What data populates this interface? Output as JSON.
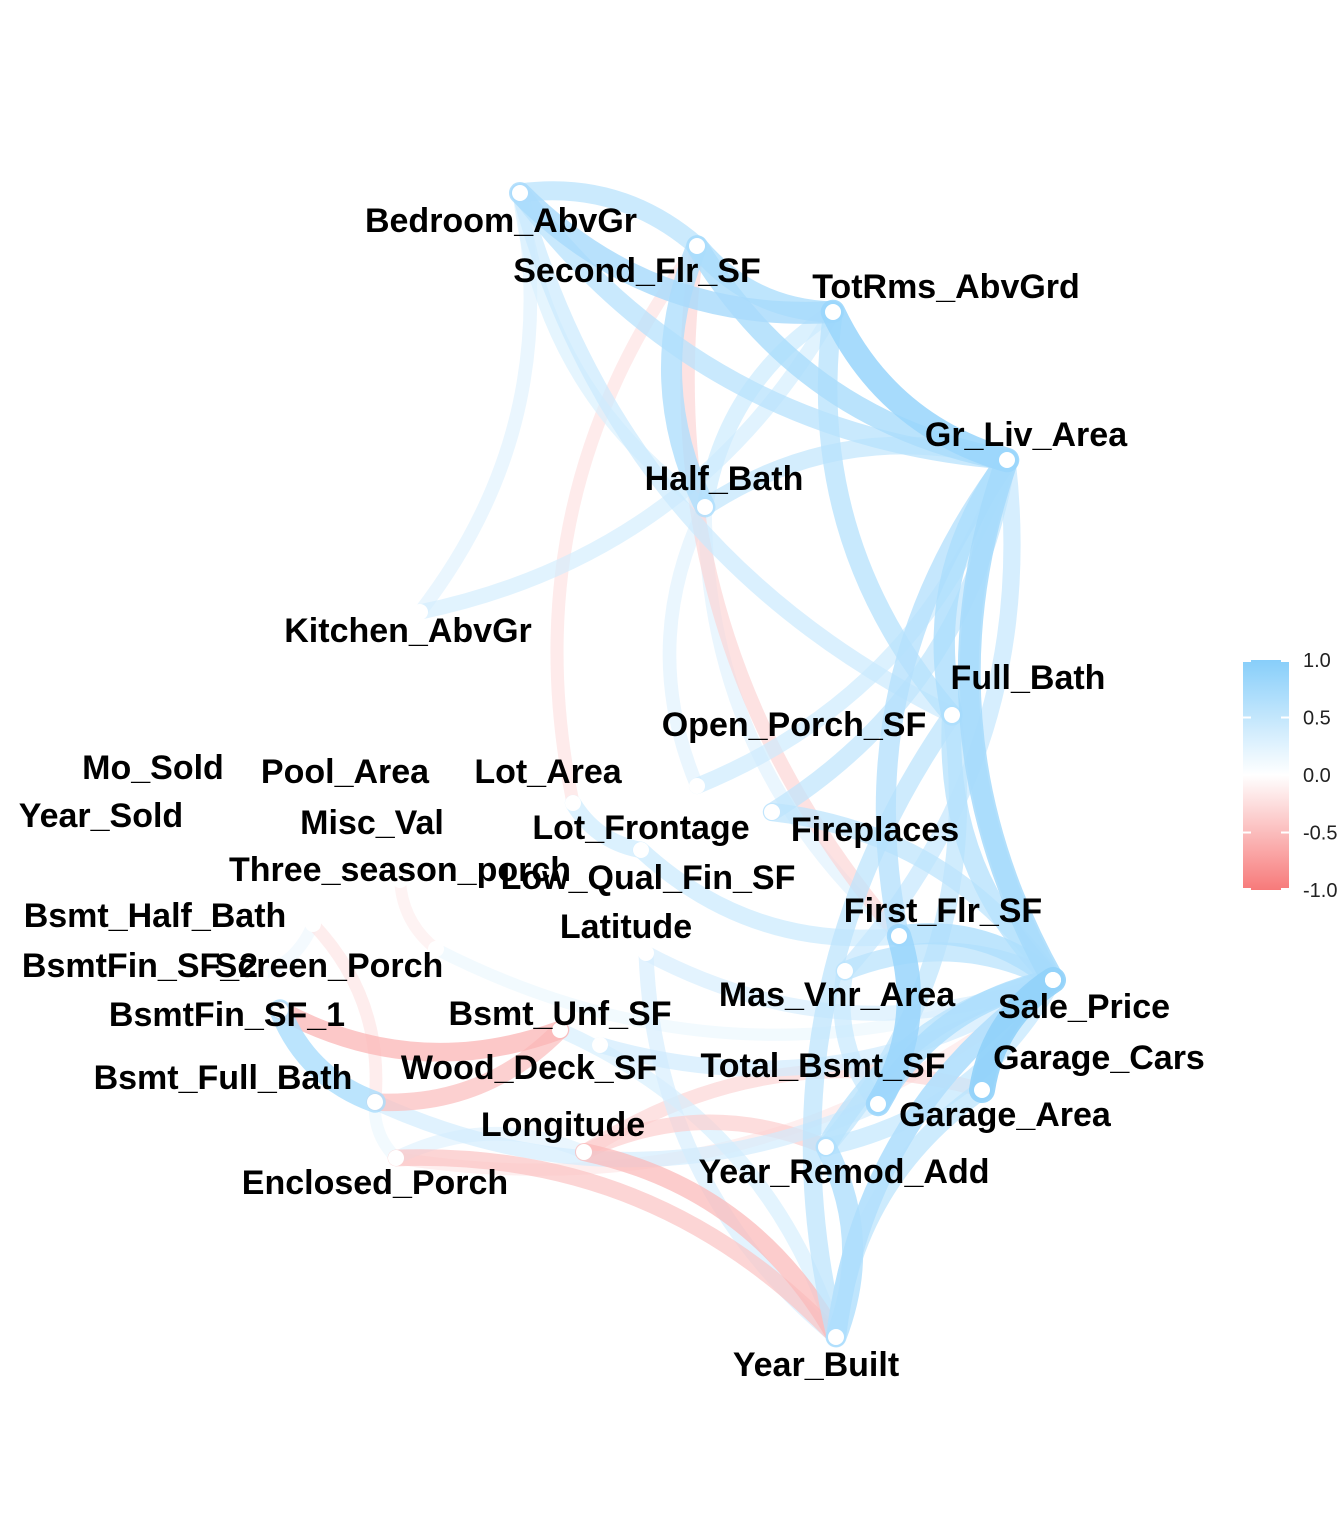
{
  "chart_data": {
    "type": "correlation-network",
    "nodes": [
      {
        "id": "Bedroom_AbvGr",
        "label": "Bedroom_AbvGr"
      },
      {
        "id": "Second_Flr_SF",
        "label": "Second_Flr_SF"
      },
      {
        "id": "TotRms_AbvGrd",
        "label": "TotRms_AbvGrd"
      },
      {
        "id": "Gr_Liv_Area",
        "label": "Gr_Liv_Area"
      },
      {
        "id": "Half_Bath",
        "label": "Half_Bath"
      },
      {
        "id": "Kitchen_AbvGr",
        "label": "Kitchen_AbvGr"
      },
      {
        "id": "Full_Bath",
        "label": "Full_Bath"
      },
      {
        "id": "Open_Porch_SF",
        "label": "Open_Porch_SF"
      },
      {
        "id": "Mo_Sold",
        "label": "Mo_Sold"
      },
      {
        "id": "Pool_Area",
        "label": "Pool_Area"
      },
      {
        "id": "Lot_Area",
        "label": "Lot_Area"
      },
      {
        "id": "Year_Sold",
        "label": "Year_Sold"
      },
      {
        "id": "Misc_Val",
        "label": "Misc_Val"
      },
      {
        "id": "Lot_Frontage",
        "label": "Lot_Frontage"
      },
      {
        "id": "Fireplaces",
        "label": "Fireplaces"
      },
      {
        "id": "Three_season_porch",
        "label": "Three_season_porch"
      },
      {
        "id": "Low_Qual_Fin_SF",
        "label": "Low_Qual_Fin_SF"
      },
      {
        "id": "Bsmt_Half_Bath",
        "label": "Bsmt_Half_Bath"
      },
      {
        "id": "First_Flr_SF",
        "label": "First_Flr_SF"
      },
      {
        "id": "Latitude",
        "label": "Latitude"
      },
      {
        "id": "BsmtFin_SF_2",
        "label": "BsmtFin_SF_2"
      },
      {
        "id": "Screen_Porch",
        "label": "Screen_Porch"
      },
      {
        "id": "Mas_Vnr_Area",
        "label": "Mas_Vnr_Area"
      },
      {
        "id": "Sale_Price",
        "label": "Sale_Price"
      },
      {
        "id": "BsmtFin_SF_1",
        "label": "BsmtFin_SF_1"
      },
      {
        "id": "Bsmt_Unf_SF",
        "label": "Bsmt_Unf_SF"
      },
      {
        "id": "Garage_Cars",
        "label": "Garage_Cars"
      },
      {
        "id": "Wood_Deck_SF",
        "label": "Wood_Deck_SF"
      },
      {
        "id": "Total_Bsmt_SF",
        "label": "Total_Bsmt_SF"
      },
      {
        "id": "Bsmt_Full_Bath",
        "label": "Bsmt_Full_Bath"
      },
      {
        "id": "Garage_Area",
        "label": "Garage_Area"
      },
      {
        "id": "Longitude",
        "label": "Longitude"
      },
      {
        "id": "Year_Remod_Add",
        "label": "Year_Remod_Add"
      },
      {
        "id": "Enclosed_Porch",
        "label": "Enclosed_Porch"
      },
      {
        "id": "Year_Built",
        "label": "Year_Built"
      }
    ],
    "edges": [
      {
        "source": "Second_Flr_SF",
        "target": "Gr_Liv_Area",
        "r": 0.65
      },
      {
        "source": "TotRms_AbvGrd",
        "target": "Gr_Liv_Area",
        "r": 0.81
      },
      {
        "source": "Bedroom_AbvGr",
        "target": "TotRms_AbvGrd",
        "r": 0.67
      },
      {
        "source": "Bedroom_AbvGr",
        "target": "Gr_Liv_Area",
        "r": 0.52
      },
      {
        "source": "Second_Flr_SF",
        "target": "TotRms_AbvGrd",
        "r": 0.62
      },
      {
        "source": "Second_Flr_SF",
        "target": "Half_Bath",
        "r": 0.61
      },
      {
        "source": "Second_Flr_SF",
        "target": "Bedroom_AbvGr",
        "r": 0.5
      },
      {
        "source": "Gr_Liv_Area",
        "target": "Full_Bath",
        "r": 0.63
      },
      {
        "source": "Gr_Liv_Area",
        "target": "Sale_Price",
        "r": 0.71
      },
      {
        "source": "Gr_Liv_Area",
        "target": "Half_Bath",
        "r": 0.43
      },
      {
        "source": "TotRms_AbvGrd",
        "target": "Full_Bath",
        "r": 0.53
      },
      {
        "source": "TotRms_AbvGrd",
        "target": "Half_Bath",
        "r": 0.35
      },
      {
        "source": "Full_Bath",
        "target": "Sale_Price",
        "r": 0.55
      },
      {
        "source": "Full_Bath",
        "target": "Year_Built",
        "r": 0.47
      },
      {
        "source": "Gr_Liv_Area",
        "target": "First_Flr_SF",
        "r": 0.56
      },
      {
        "source": "Gr_Liv_Area",
        "target": "Garage_Cars",
        "r": 0.49
      },
      {
        "source": "Sale_Price",
        "target": "Garage_Cars",
        "r": 0.65
      },
      {
        "source": "Sale_Price",
        "target": "Garage_Area",
        "r": 0.64
      },
      {
        "source": "Sale_Price",
        "target": "Total_Bsmt_SF",
        "r": 0.63
      },
      {
        "source": "Sale_Price",
        "target": "First_Flr_SF",
        "r": 0.62
      },
      {
        "source": "Sale_Price",
        "target": "Year_Built",
        "r": 0.56
      },
      {
        "source": "Sale_Price",
        "target": "Year_Remod_Add",
        "r": 0.53
      },
      {
        "source": "Sale_Price",
        "target": "Mas_Vnr_Area",
        "r": 0.5
      },
      {
        "source": "Sale_Price",
        "target": "Fireplaces",
        "r": 0.47
      },
      {
        "source": "Garage_Cars",
        "target": "Garage_Area",
        "r": 0.89
      },
      {
        "source": "Garage_Cars",
        "target": "Year_Built",
        "r": 0.54
      },
      {
        "source": "Garage_Area",
        "target": "Year_Built",
        "r": 0.48
      },
      {
        "source": "Total_Bsmt_SF",
        "target": "First_Flr_SF",
        "r": 0.8
      },
      {
        "source": "Year_Built",
        "target": "Year_Remod_Add",
        "r": 0.61
      },
      {
        "source": "Year_Built",
        "target": "Enclosed_Porch",
        "r": -0.37
      },
      {
        "source": "Year_Built",
        "target": "Longitude",
        "r": -0.45
      },
      {
        "source": "Year_Built",
        "target": "Bsmt_Unf_SF",
        "r": 0.27
      },
      {
        "source": "Year_Remod_Add",
        "target": "Longitude",
        "r": -0.3
      },
      {
        "source": "Garage_Area",
        "target": "Longitude",
        "r": -0.25
      },
      {
        "source": "Longitude",
        "target": "Enclosed_Porch",
        "r": 0.2
      },
      {
        "source": "BsmtFin_SF_1",
        "target": "Bsmt_Full_Bath",
        "r": 0.64
      },
      {
        "source": "BsmtFin_SF_1",
        "target": "Bsmt_Unf_SF",
        "r": -0.48
      },
      {
        "source": "Bsmt_Full_Bath",
        "target": "Bsmt_Unf_SF",
        "r": -0.42
      },
      {
        "source": "BsmtFin_SF_2",
        "target": "Bsmt_Half_Bath",
        "r": 0.1
      },
      {
        "source": "Three_season_porch",
        "target": "Screen_Porch",
        "r": -0.1
      },
      {
        "source": "Bsmt_Full_Bath",
        "target": "Bsmt_Half_Bath",
        "r": -0.15
      },
      {
        "source": "Bsmt_Full_Bath",
        "target": "Total_Bsmt_SF",
        "r": 0.3
      },
      {
        "source": "Bsmt_Full_Bath",
        "target": "Enclosed_Porch",
        "r": 0.12
      },
      {
        "source": "Second_Flr_SF",
        "target": "Lot_Area",
        "r": -0.17
      },
      {
        "source": "Second_Flr_SF",
        "target": "First_Flr_SF",
        "r": -0.25
      },
      {
        "source": "Kitchen_AbvGr",
        "target": "Bedroom_AbvGr",
        "r": 0.2
      },
      {
        "source": "Half_Bath",
        "target": "Open_Porch_SF",
        "r": 0.2
      },
      {
        "source": "Half_Bath",
        "target": "First_Flr_SF",
        "r": 0.2
      },
      {
        "source": "Open_Porch_SF",
        "target": "Gr_Liv_Area",
        "r": 0.34
      },
      {
        "source": "Fireplaces",
        "target": "Gr_Liv_Area",
        "r": 0.45
      },
      {
        "source": "Lot_Area",
        "target": "Lot_Frontage",
        "r": 0.35
      },
      {
        "source": "Lot_Frontage",
        "target": "First_Flr_SF",
        "r": 0.37
      },
      {
        "source": "Mas_Vnr_Area",
        "target": "Total_Bsmt_SF",
        "r": 0.39
      },
      {
        "source": "Mas_Vnr_Area",
        "target": "Gr_Liv_Area",
        "r": 0.4
      },
      {
        "source": "Wood_Deck_SF",
        "target": "Sale_Price",
        "r": 0.33
      },
      {
        "source": "Latitude",
        "target": "Year_Built",
        "r": 0.28
      },
      {
        "source": "Latitude",
        "target": "Sale_Price",
        "r": 0.28
      },
      {
        "source": "Bedroom_AbvGr",
        "target": "Half_Bath",
        "r": 0.25
      },
      {
        "source": "Bedroom_AbvGr",
        "target": "Full_Bath",
        "r": 0.36
      },
      {
        "source": "Kitchen_AbvGr",
        "target": "TotRms_AbvGrd",
        "r": 0.29
      },
      {
        "source": "Screen_Porch",
        "target": "Sale_Price",
        "r": 0.12
      },
      {
        "source": "Enclosed_Porch",
        "target": "Garage_Cars",
        "r": -0.13
      },
      {
        "source": "Year_Remod_Add",
        "target": "Garage_Cars",
        "r": 0.42
      },
      {
        "source": "Year_Remod_Add",
        "target": "Full_Bath",
        "r": 0.46
      }
    ],
    "legend": {
      "ticks": [
        "1.0",
        "0.5",
        "0.0",
        "-0.5",
        "-1.0"
      ],
      "min": -1.0,
      "max": 1.0,
      "colors": {
        "positive": "#87CEFA",
        "zero": "#FFFFFF",
        "negative": "#F77A7A"
      }
    }
  }
}
